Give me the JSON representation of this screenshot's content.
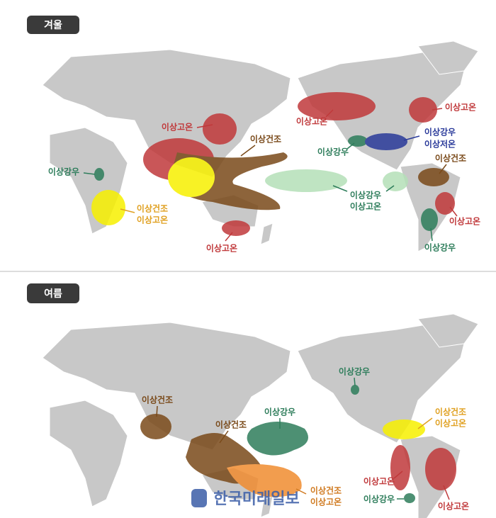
{
  "panels": [
    {
      "title": "겨울",
      "labels": [
        [
          "이상고온"
        ],
        [
          "이상건조"
        ],
        [
          "이상강우"
        ],
        [
          "이상건조",
          "이상고온"
        ],
        [
          "이상고온"
        ],
        [
          "이상고온"
        ],
        [
          "이상강우"
        ],
        [
          "이상강우",
          "이상저온"
        ],
        [
          "이상고온"
        ],
        [
          "이상건조"
        ],
        [
          "이상강우",
          "이상고온"
        ],
        [
          "이상고온"
        ],
        [
          "이상강우"
        ]
      ]
    },
    {
      "title": "여름",
      "labels": [
        [
          "이상강우"
        ],
        [
          "이상건조"
        ],
        [
          "이상강우"
        ],
        [
          "이상건조"
        ],
        [
          "이상건조",
          "이상고온"
        ],
        [
          "이상건조",
          "이상고온"
        ],
        [
          "이상고온"
        ],
        [
          "이상고온"
        ],
        [
          "이상강우"
        ]
      ]
    }
  ],
  "watermark": "한국미래일보"
}
